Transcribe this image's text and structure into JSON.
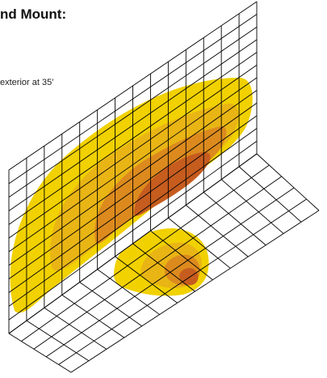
{
  "header": {
    "title": "nd Mount:"
  },
  "caption": {
    "text": "exterior at 35′"
  },
  "colors": {
    "grid_line": "#000000",
    "illumination_outer": "#f1d100",
    "illumination_mid": "#e9b515",
    "illumination_core": "#dc8a1e",
    "illumination_hotspot": "#c65c1e"
  }
}
